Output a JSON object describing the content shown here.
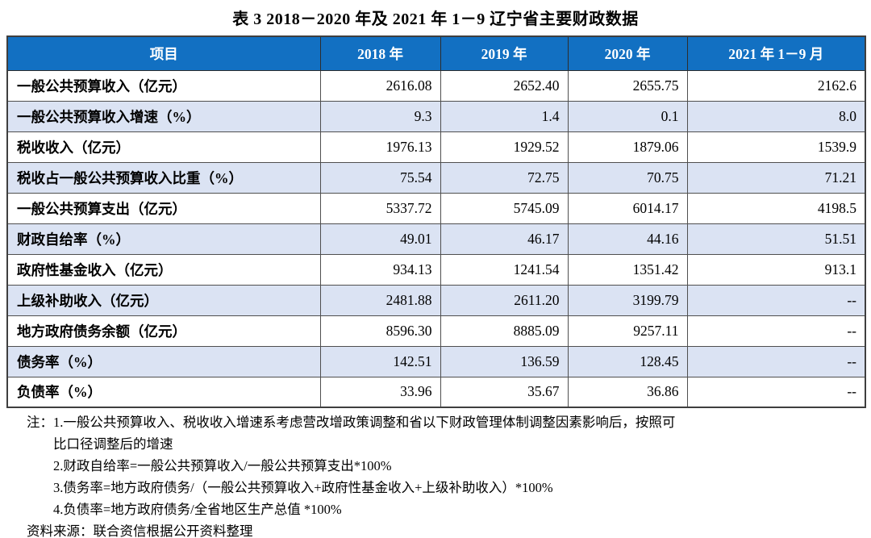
{
  "page": {
    "title": "表 3  2018－2020 年及 2021 年 1－9 辽宁省主要财政数据"
  },
  "table": {
    "columns": [
      "项目",
      "2018 年",
      "2019 年",
      "2020 年",
      "2021 年 1－9 月"
    ],
    "rows": [
      {
        "label": "一般公共预算收入（亿元）",
        "values": [
          "2616.08",
          "2652.40",
          "2655.75",
          "2162.6"
        ]
      },
      {
        "label": "一般公共预算收入增速（%）",
        "values": [
          "9.3",
          "1.4",
          "0.1",
          "8.0"
        ]
      },
      {
        "label": "税收收入（亿元）",
        "values": [
          "1976.13",
          "1929.52",
          "1879.06",
          "1539.9"
        ]
      },
      {
        "label": "税收占一般公共预算收入比重（%）",
        "values": [
          "75.54",
          "72.75",
          "70.75",
          "71.21"
        ]
      },
      {
        "label": "一般公共预算支出（亿元）",
        "values": [
          "5337.72",
          "5745.09",
          "6014.17",
          "4198.5"
        ]
      },
      {
        "label": "财政自给率（%）",
        "values": [
          "49.01",
          "46.17",
          "44.16",
          "51.51"
        ]
      },
      {
        "label": "政府性基金收入（亿元）",
        "values": [
          "934.13",
          "1241.54",
          "1351.42",
          "913.1"
        ]
      },
      {
        "label": "上级补助收入（亿元）",
        "values": [
          "2481.88",
          "2611.20",
          "3199.79",
          "--"
        ]
      },
      {
        "label": "地方政府债务余额（亿元）",
        "values": [
          "8596.30",
          "8885.09",
          "9257.11",
          "--"
        ]
      },
      {
        "label": "债务率（%）",
        "values": [
          "142.51",
          "136.59",
          "128.45",
          "--"
        ]
      },
      {
        "label": "负债率（%）",
        "values": [
          "33.96",
          "35.67",
          "36.86",
          "--"
        ]
      }
    ]
  },
  "notes": {
    "lines": [
      {
        "indent": "first",
        "text": "注：1.一般公共预算收入、税收收入增速系考虑营改增政策调整和省以下财政管理体制调整因素影响后，按照可"
      },
      {
        "indent": "cont",
        "text": "比口径调整后的增速"
      },
      {
        "indent": "cont",
        "text": "2.财政自给率=一般公共预算收入/一般公共预算支出*100%"
      },
      {
        "indent": "cont",
        "text": "3.债务率=地方政府债务/（一般公共预算收入+政府性基金收入+上级补助收入）*100%"
      },
      {
        "indent": "cont",
        "text": "4.负债率=地方政府债务/全省地区生产总值 *100%"
      }
    ],
    "source": "资料来源：联合资信根据公开资料整理"
  },
  "colors": {
    "header_bg": "#1270c2",
    "header_text": "#ffffff",
    "row_alt_bg": "#dbe3f3",
    "border": "#4f4f4f",
    "outer_border": "#3f3f3f"
  }
}
